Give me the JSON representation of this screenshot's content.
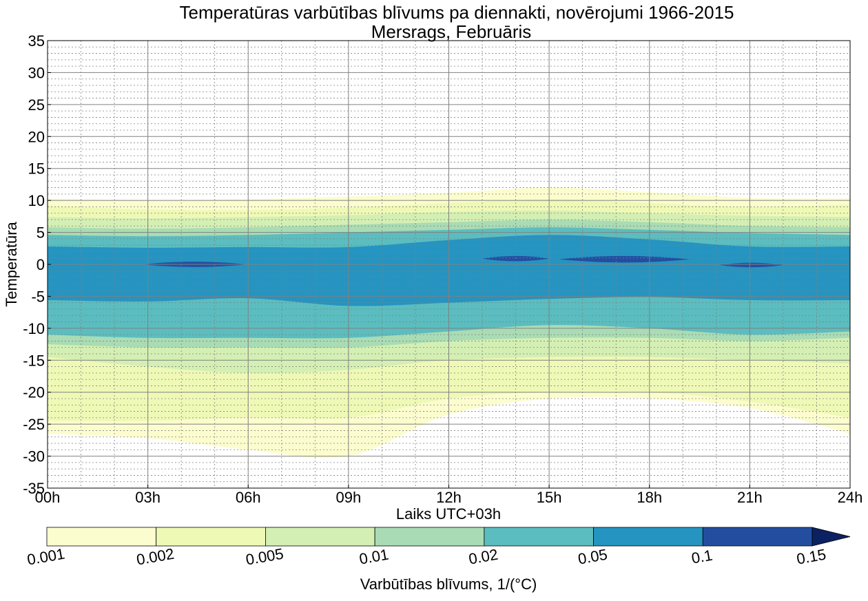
{
  "chart_data": {
    "type": "contour",
    "title": "Temperatūras varbūtības blīvums pa diennakti, novērojumi 1966-2015",
    "subtitle": "Mersrags, Februāris",
    "xlabel": "Laiks UTC+03h",
    "ylabel": "Temperatūra",
    "x_ticks": [
      "00h",
      "03h",
      "06h",
      "09h",
      "12h",
      "15h",
      "18h",
      "21h",
      "24h"
    ],
    "x_tick_values": [
      0,
      3,
      6,
      9,
      12,
      15,
      18,
      21,
      24
    ],
    "xlim": [
      0,
      24
    ],
    "y_ticks": [
      "35",
      "30",
      "25",
      "20",
      "15",
      "10",
      "5",
      "0",
      "-5",
      "-10",
      "-15",
      "-20",
      "-25",
      "-30",
      "-35"
    ],
    "y_tick_values": [
      35,
      30,
      25,
      20,
      15,
      10,
      5,
      0,
      -5,
      -10,
      -15,
      -20,
      -25,
      -30,
      -35
    ],
    "ylim": [
      -35,
      35
    ],
    "grid": true,
    "colorbar": {
      "label": "Varbūtības blīvums, 1/(°C)",
      "levels": [
        "0.001",
        "0.002",
        "0.005",
        "0.01",
        "0.02",
        "0.05",
        "0.1",
        "0.15"
      ],
      "colors": [
        "#fcfdce",
        "#eff9b6",
        "#d4efb3",
        "#a9dcb4",
        "#5bbdbf",
        "#2594c1",
        "#234ea0",
        "#0c2161"
      ],
      "extend": "max"
    },
    "bands": [
      {
        "level_index": 0,
        "color": "#fcfdce",
        "x": [
          0,
          3,
          6,
          9,
          12,
          15,
          18,
          21,
          24
        ],
        "upper": [
          10.3,
          10.0,
          10.2,
          10.6,
          11.2,
          12.0,
          11.3,
          10.4,
          10.3
        ],
        "lower": [
          -26.5,
          -27.2,
          -29.0,
          -30.0,
          -23.5,
          -21.0,
          -21.0,
          -22.5,
          -26.5
        ]
      },
      {
        "level_index": 1,
        "color": "#eff9b6",
        "x": [
          0,
          3,
          6,
          9,
          12,
          15,
          18,
          21,
          24
        ],
        "upper": [
          9.2,
          8.6,
          8.5,
          8.9,
          9.6,
          10.2,
          9.6,
          9.0,
          9.4
        ],
        "lower": [
          -24.5,
          -24.5,
          -24.0,
          -24.0,
          -21.0,
          -20.0,
          -20.0,
          -21.5,
          -24.0
        ]
      },
      {
        "level_index": 2,
        "color": "#d4efb3",
        "x": [
          0,
          3,
          6,
          9,
          12,
          15,
          18,
          21,
          24
        ],
        "upper": [
          7.4,
          7.2,
          7.4,
          7.7,
          8.2,
          8.4,
          8.0,
          7.6,
          7.4
        ],
        "lower": [
          -14.5,
          -16.0,
          -17.0,
          -16.5,
          -15.0,
          -14.5,
          -14.5,
          -15.0,
          -15.5
        ]
      },
      {
        "level_index": 3,
        "color": "#a9dcb4",
        "x": [
          0,
          3,
          6,
          9,
          12,
          15,
          18,
          21,
          24
        ],
        "upper": [
          5.8,
          5.6,
          5.8,
          6.2,
          6.6,
          7.0,
          6.6,
          6.0,
          5.8
        ],
        "lower": [
          -12.5,
          -13.0,
          -13.0,
          -13.0,
          -12.0,
          -11.5,
          -11.5,
          -12.0,
          -11.5
        ]
      },
      {
        "level_index": 4,
        "color": "#5bbdbf",
        "x": [
          0,
          3,
          6,
          9,
          12,
          15,
          18,
          21,
          24
        ],
        "upper": [
          4.6,
          4.4,
          4.6,
          5.0,
          5.4,
          5.8,
          5.4,
          4.9,
          4.6
        ],
        "lower": [
          -11.0,
          -11.5,
          -11.5,
          -11.5,
          -10.5,
          -9.5,
          -10.0,
          -11.0,
          -10.5
        ]
      },
      {
        "level_index": 5,
        "color": "#2594c1",
        "x": [
          0,
          3,
          6,
          9,
          12,
          15,
          18,
          21,
          24
        ],
        "upper": [
          2.8,
          2.6,
          2.7,
          2.7,
          3.8,
          4.6,
          3.9,
          2.8,
          2.8
        ],
        "lower": [
          -5.6,
          -5.8,
          -5.3,
          -6.5,
          -6.0,
          -5.4,
          -5.1,
          -5.6,
          -5.6
        ]
      }
    ],
    "patches": [
      {
        "level_index": 6,
        "color": "#234ea0",
        "x_range": [
          2.8,
          6.0
        ],
        "y_center": 0.0,
        "half_height": 0.25
      },
      {
        "level_index": 6,
        "color": "#234ea0",
        "x_range": [
          13.0,
          15.0
        ],
        "y_center": 0.9,
        "half_height": 0.25
      },
      {
        "level_index": 6,
        "color": "#234ea0",
        "x_range": [
          15.3,
          19.2
        ],
        "y_center": 0.8,
        "half_height": 0.35
      },
      {
        "level_index": 6,
        "color": "#234ea0",
        "x_range": [
          20.1,
          22.0
        ],
        "y_center": -0.1,
        "half_height": 0.2
      }
    ]
  }
}
